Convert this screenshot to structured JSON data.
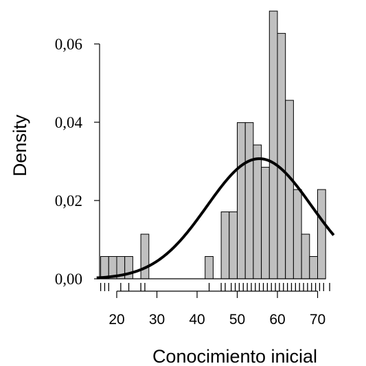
{
  "chart_data": {
    "type": "bar",
    "title": "",
    "xlabel": "Conocimiento inicial",
    "ylabel": "Density",
    "xlim": [
      15,
      74
    ],
    "ylim": [
      0,
      0.068
    ],
    "x_ticks": [
      20,
      30,
      40,
      50,
      60,
      70
    ],
    "x_tick_labels": [
      "20",
      "30",
      "40",
      "50",
      "60",
      "70"
    ],
    "y_ticks": [
      0.0,
      0.02,
      0.04,
      0.06
    ],
    "y_tick_labels": [
      "0,00",
      "0,02",
      "0,04",
      "0,06"
    ],
    "bar_color": "#c0c0c0",
    "bar_edge_color": "#000000",
    "curve_color": "#000000",
    "bin_width": 2,
    "bins": [
      {
        "x0": 16,
        "x1": 18,
        "density": 0.0057
      },
      {
        "x0": 18,
        "x1": 20,
        "density": 0.0057
      },
      {
        "x0": 20,
        "x1": 22,
        "density": 0.0057
      },
      {
        "x0": 22,
        "x1": 24,
        "density": 0.0057
      },
      {
        "x0": 26,
        "x1": 28,
        "density": 0.0114
      },
      {
        "x0": 42,
        "x1": 44,
        "density": 0.0057
      },
      {
        "x0": 46,
        "x1": 48,
        "density": 0.0171
      },
      {
        "x0": 48,
        "x1": 50,
        "density": 0.0171
      },
      {
        "x0": 50,
        "x1": 52,
        "density": 0.0399
      },
      {
        "x0": 52,
        "x1": 54,
        "density": 0.0399
      },
      {
        "x0": 54,
        "x1": 56,
        "density": 0.0342
      },
      {
        "x0": 56,
        "x1": 58,
        "density": 0.0285
      },
      {
        "x0": 58,
        "x1": 60,
        "density": 0.0684
      },
      {
        "x0": 60,
        "x1": 62,
        "density": 0.0627
      },
      {
        "x0": 62,
        "x1": 64,
        "density": 0.0456
      },
      {
        "x0": 64,
        "x1": 66,
        "density": 0.0228
      },
      {
        "x0": 66,
        "x1": 68,
        "density": 0.0114
      },
      {
        "x0": 68,
        "x1": 70,
        "density": 0.0057
      },
      {
        "x0": 70,
        "x1": 72,
        "density": 0.0228
      }
    ],
    "normal_curve": {
      "mean": 55.5,
      "sd": 13.0
    },
    "rug": [
      16,
      17,
      18,
      21,
      23,
      26,
      27,
      43,
      46,
      47,
      48.5,
      49.5,
      50.5,
      51.5,
      52.5,
      53.5,
      54.5,
      55.5,
      56.5,
      57.5,
      58.5,
      59.5,
      60.5,
      61.5,
      62.5,
      63.5,
      64.5,
      65.5,
      66.5,
      67.5,
      68.5,
      69.5,
      70.5,
      71.5,
      73
    ]
  }
}
